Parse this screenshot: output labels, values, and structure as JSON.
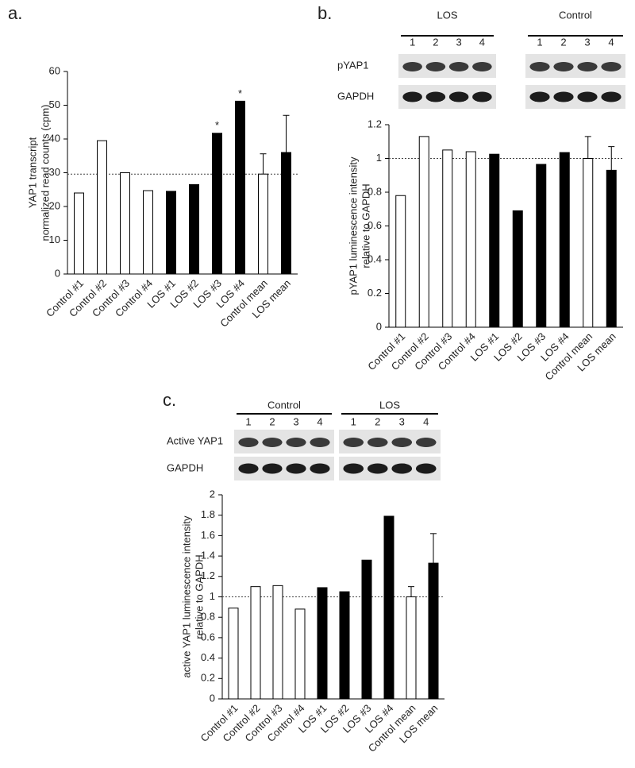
{
  "chart_data": [
    {
      "type": "bar",
      "panel": "a.",
      "ylabel": [
        "YAP1 transcript",
        "normalized read counts (cpm)"
      ],
      "categories": [
        "Control #1",
        "Control #2",
        "Control #3",
        "Control #4",
        "LOS #1",
        "LOS #2",
        "LOS #3",
        "LOS #4",
        "Control mean",
        "LOS mean"
      ],
      "values": [
        24,
        39.5,
        30,
        24.7,
        24.5,
        26.5,
        41.7,
        51.2,
        29.6,
        36
      ],
      "errors": [
        null,
        null,
        null,
        null,
        null,
        null,
        null,
        null,
        6,
        11
      ],
      "colors": [
        "#ffffff",
        "#ffffff",
        "#ffffff",
        "#ffffff",
        "#000000",
        "#000000",
        "#000000",
        "#000000",
        "#ffffff",
        "#000000"
      ],
      "significance": [
        null,
        null,
        null,
        null,
        null,
        null,
        "*",
        "*",
        null,
        null
      ],
      "reference_line": 29.6,
      "ylim": [
        0,
        60
      ],
      "yticks": [
        0,
        10,
        20,
        30,
        40,
        50,
        60
      ]
    },
    {
      "type": "bar",
      "panel": "b.",
      "blot": {
        "groups": [
          {
            "label": "LOS",
            "lanes": [
              "1",
              "2",
              "3",
              "4"
            ]
          },
          {
            "label": "Control",
            "lanes": [
              "1",
              "2",
              "3",
              "4"
            ]
          }
        ],
        "rows": [
          "pYAP1",
          "GAPDH"
        ]
      },
      "ylabel": [
        "pYAP1 luminescence intensity",
        "relative to GAPDH"
      ],
      "categories": [
        "Control #1",
        "Control #2",
        "Control #3",
        "Control #4",
        "LOS #1",
        "LOS #2",
        "LOS #3",
        "LOS #4",
        "Control mean",
        "LOS mean"
      ],
      "values": [
        0.78,
        1.13,
        1.05,
        1.04,
        1.025,
        0.69,
        0.965,
        1.035,
        1.0,
        0.93
      ],
      "errors": [
        null,
        null,
        null,
        null,
        null,
        null,
        null,
        null,
        0.13,
        0.14
      ],
      "colors": [
        "#ffffff",
        "#ffffff",
        "#ffffff",
        "#ffffff",
        "#000000",
        "#000000",
        "#000000",
        "#000000",
        "#ffffff",
        "#000000"
      ],
      "reference_line": 1,
      "ylim": [
        0,
        1.2
      ],
      "yticks": [
        0,
        0.2,
        0.4,
        0.6,
        0.8,
        1,
        1.2
      ]
    },
    {
      "type": "bar",
      "panel": "c.",
      "blot": {
        "groups": [
          {
            "label": "Control",
            "lanes": [
              "1",
              "2",
              "3",
              "4"
            ]
          },
          {
            "label": "LOS",
            "lanes": [
              "1",
              "2",
              "3",
              "4"
            ]
          }
        ],
        "rows": [
          "Active YAP1",
          "GAPDH"
        ]
      },
      "ylabel": [
        "active YAP1 luminescence intensity",
        "relative to GAPDH"
      ],
      "categories": [
        "Control #1",
        "Control #2",
        "Control #3",
        "Control #4",
        "LOS #1",
        "LOS #2",
        "LOS #3",
        "LOS #4",
        "Control mean",
        "LOS mean"
      ],
      "values": [
        0.89,
        1.1,
        1.11,
        0.88,
        1.09,
        1.05,
        1.36,
        1.79,
        1.0,
        1.33
      ],
      "errors": [
        null,
        null,
        null,
        null,
        null,
        null,
        null,
        null,
        0.1,
        0.29
      ],
      "colors": [
        "#ffffff",
        "#ffffff",
        "#ffffff",
        "#ffffff",
        "#000000",
        "#000000",
        "#000000",
        "#000000",
        "#ffffff",
        "#000000"
      ],
      "reference_line": 1,
      "ylim": [
        0,
        2
      ],
      "yticks": [
        0,
        0.2,
        0.4,
        0.6,
        0.8,
        1,
        1.2,
        1.4,
        1.6,
        1.8,
        2
      ]
    }
  ]
}
